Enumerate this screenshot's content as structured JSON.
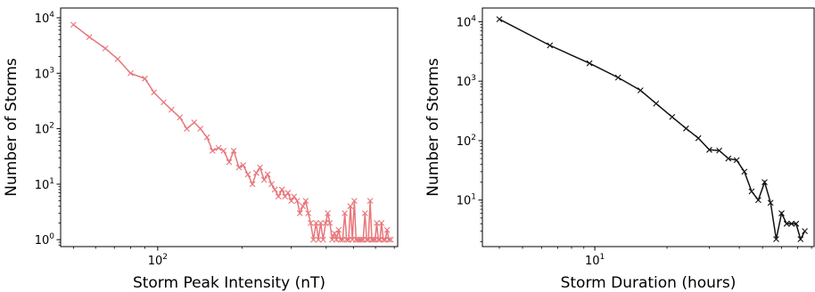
{
  "chart_data": [
    {
      "type": "line",
      "xlabel": "Storm Peak Intensity (nT)",
      "ylabel": "Number of Storms",
      "xscale": "log",
      "yscale": "log",
      "xlim": [
        45,
        720
      ],
      "ylim": [
        0.75,
        15000
      ],
      "xticks": [
        {
          "value": 100,
          "base": "10",
          "exp": "2"
        }
      ],
      "yticks": [
        {
          "value": 1,
          "base": "10",
          "exp": "0"
        },
        {
          "value": 10,
          "base": "10",
          "exp": "1"
        },
        {
          "value": 100,
          "base": "10",
          "exp": "2"
        },
        {
          "value": 1000,
          "base": "10",
          "exp": "3"
        },
        {
          "value": 10000,
          "base": "10",
          "exp": "4"
        }
      ],
      "grid": false,
      "color": "#e8767a",
      "marker": "x",
      "x": [
        50,
        57,
        65,
        72,
        80,
        90,
        97,
        105,
        112,
        120,
        127,
        135,
        142,
        150,
        157,
        165,
        172,
        180,
        187,
        195,
        202,
        210,
        218,
        225,
        232,
        240,
        247,
        255,
        262,
        270,
        278,
        285,
        292,
        300,
        307,
        315,
        322,
        330,
        338,
        345,
        352,
        360,
        368,
        375,
        382,
        390,
        398,
        405,
        412,
        420,
        428,
        435,
        443,
        450,
        458,
        466,
        473,
        481,
        488,
        496,
        504,
        511,
        519,
        527,
        534,
        542,
        550,
        558,
        566,
        574,
        582,
        590,
        598,
        606,
        614,
        622,
        630,
        640,
        650,
        660,
        670,
        680
      ],
      "values": [
        7500,
        4500,
        2800,
        1800,
        1000,
        800,
        450,
        300,
        220,
        160,
        100,
        130,
        100,
        70,
        40,
        45,
        40,
        25,
        40,
        20,
        22,
        15,
        10,
        16,
        20,
        12,
        15,
        10,
        8,
        6,
        8,
        6,
        7,
        5,
        6,
        5,
        3,
        4,
        5,
        3,
        2,
        1,
        2,
        1,
        2,
        1,
        2,
        3,
        2,
        1,
        1.3,
        1,
        1.5,
        1,
        1,
        3,
        1,
        1,
        4,
        1,
        5,
        1,
        1,
        1,
        1,
        1,
        3,
        1,
        1,
        5,
        1,
        1,
        1,
        2,
        1,
        1,
        2,
        1,
        1,
        1.5,
        1,
        1
      ]
    },
    {
      "type": "line",
      "xlabel": "Storm Duration (hours)",
      "ylabel": "Number of Storms",
      "xscale": "log",
      "yscale": "log",
      "xlim": [
        3.4,
        82
      ],
      "ylim": [
        1.65,
        17000
      ],
      "xticks": [
        {
          "value": 10,
          "base": "10",
          "exp": "1"
        }
      ],
      "yticks": [
        {
          "value": 10,
          "base": "10",
          "exp": "1"
        },
        {
          "value": 100,
          "base": "10",
          "exp": "2"
        },
        {
          "value": 1000,
          "base": "10",
          "exp": "3"
        },
        {
          "value": 10000,
          "base": "10",
          "exp": "4"
        }
      ],
      "grid": false,
      "color": "#111111",
      "marker": "x",
      "x": [
        4,
        6.5,
        9.5,
        12.5,
        15.5,
        18,
        21,
        24,
        27,
        30,
        33,
        36,
        39,
        42,
        45,
        48,
        51,
        54,
        57,
        60,
        63,
        66,
        69,
        72,
        75
      ],
      "values": [
        11000,
        4000,
        2000,
        1150,
        700,
        420,
        250,
        160,
        110,
        70,
        68,
        50,
        47,
        30,
        14,
        10,
        20,
        9,
        2.2,
        6,
        4,
        4,
        4,
        2.2,
        3
      ]
    }
  ]
}
